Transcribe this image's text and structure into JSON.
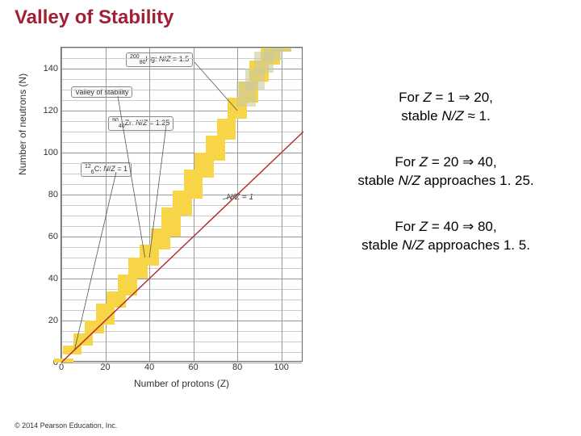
{
  "title": "Valley of Stability",
  "copyright": "© 2014 Pearson Education, Inc.",
  "chart": {
    "type": "scatter-band",
    "xlabel": "Number of protons (Z)",
    "ylabel": "Number of neutrons (N)",
    "xlim": [
      0,
      110
    ],
    "ylim": [
      0,
      150
    ],
    "xticks": [
      0,
      20,
      40,
      60,
      80,
      100
    ],
    "yticks": [
      0,
      20,
      40,
      60,
      80,
      100,
      120,
      140
    ],
    "background_color": "#ffffff",
    "grid_color": "#999999",
    "band_color": "#f7d547",
    "muted_band_color": "#c9c9a0",
    "line_color": "#b03030",
    "line_label": "N/Z = 1",
    "callouts": {
      "hg": "200/80 Hg: N/Z = 1.5",
      "valley": "Valley of stability",
      "zr": "90/40 Zr: N/Z = 1.25",
      "c": "12/6 C: N/Z = 1"
    },
    "band_points": [
      {
        "z": 1,
        "nlo": 0,
        "nhi": 2
      },
      {
        "z": 5,
        "nlo": 4,
        "nhi": 8
      },
      {
        "z": 10,
        "nlo": 8,
        "nhi": 14
      },
      {
        "z": 15,
        "nlo": 14,
        "nhi": 20
      },
      {
        "z": 20,
        "nlo": 18,
        "nhi": 28
      },
      {
        "z": 25,
        "nlo": 26,
        "nhi": 34
      },
      {
        "z": 30,
        "nlo": 32,
        "nhi": 42
      },
      {
        "z": 35,
        "nlo": 40,
        "nhi": 50
      },
      {
        "z": 40,
        "nlo": 46,
        "nhi": 56
      },
      {
        "z": 45,
        "nlo": 54,
        "nhi": 64
      },
      {
        "z": 50,
        "nlo": 60,
        "nhi": 74
      },
      {
        "z": 55,
        "nlo": 70,
        "nhi": 82
      },
      {
        "z": 60,
        "nlo": 78,
        "nhi": 92
      },
      {
        "z": 65,
        "nlo": 88,
        "nhi": 100
      },
      {
        "z": 70,
        "nlo": 96,
        "nhi": 108
      },
      {
        "z": 75,
        "nlo": 106,
        "nhi": 116
      },
      {
        "z": 80,
        "nlo": 116,
        "nhi": 126
      },
      {
        "z": 85,
        "nlo": 124,
        "nhi": 134
      },
      {
        "z": 90,
        "nlo": 134,
        "nhi": 144
      },
      {
        "z": 95,
        "nlo": 142,
        "nhi": 150
      },
      {
        "z": 100,
        "nlo": 148,
        "nhi": 150
      }
    ],
    "muted_points": [
      {
        "z": 84,
        "nlo": 122,
        "nhi": 134
      },
      {
        "z": 88,
        "nlo": 130,
        "nhi": 140
      },
      {
        "z": 92,
        "nlo": 138,
        "nhi": 148
      },
      {
        "z": 96,
        "nlo": 144,
        "nhi": 150
      },
      {
        "z": 100,
        "nlo": 148,
        "nhi": 150
      }
    ]
  },
  "annotations": [
    {
      "line1": "For Z = 1 ⇒ 20,",
      "line2": "stable N/Z ≈ 1."
    },
    {
      "line1": "For Z = 20 ⇒ 40,",
      "line2": "stable N/Z approaches 1. 25."
    },
    {
      "line1": "For Z = 40 ⇒ 80,",
      "line2": "stable N/Z approaches 1. 5."
    }
  ]
}
